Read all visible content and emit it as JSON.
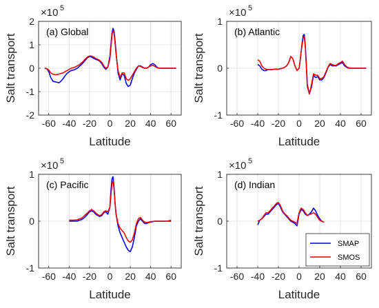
{
  "chart_data": [
    {
      "type": "line",
      "panel_label": "(a) Global",
      "xlabel": "Latitude",
      "ylabel": "Salt transport",
      "exponent": "×10",
      "exponent_power": "5",
      "xticks": [
        -60,
        -40,
        -20,
        0,
        20,
        40,
        60
      ],
      "yticks": [
        -2,
        -1,
        0,
        1,
        2
      ],
      "xlim": [
        -70,
        70
      ],
      "ylim": [
        -2,
        2
      ],
      "grid": true,
      "series": [
        {
          "name": "SMAP",
          "color": "#0000ee",
          "x": [
            -64,
            -62,
            -60,
            -58,
            -56,
            -54,
            -52,
            -50,
            -48,
            -46,
            -44,
            -42,
            -40,
            -38,
            -36,
            -34,
            -32,
            -30,
            -28,
            -26,
            -24,
            -22,
            -20,
            -18,
            -16,
            -14,
            -12,
            -10,
            -8,
            -6,
            -4,
            -2,
            0,
            1,
            2,
            3,
            4,
            5,
            6,
            8,
            10,
            12,
            14,
            16,
            18,
            20,
            22,
            24,
            26,
            28,
            30,
            32,
            34,
            36,
            38,
            40,
            42,
            44,
            46,
            48,
            50,
            55,
            60,
            65
          ],
          "y": [
            0,
            -0.02,
            -0.15,
            -0.4,
            -0.55,
            -0.58,
            -0.6,
            -0.62,
            -0.55,
            -0.45,
            -0.32,
            -0.22,
            -0.15,
            -0.1,
            -0.08,
            -0.05,
            0,
            0.08,
            0.15,
            0.25,
            0.35,
            0.45,
            0.5,
            0.48,
            0.42,
            0.38,
            0.35,
            0.3,
            0.2,
            0.05,
            -0.05,
            0.05,
            0.5,
            1.0,
            1.5,
            1.7,
            1.6,
            1.2,
            0.7,
            -0.2,
            -0.5,
            -0.25,
            -0.3,
            -0.65,
            -0.78,
            -0.72,
            -0.45,
            -0.2,
            -0.05,
            0.1,
            0.1,
            0.05,
            0,
            0,
            0.05,
            0.15,
            0.2,
            0.15,
            0.05,
            0,
            0,
            0,
            0,
            0
          ]
        },
        {
          "name": "SMOS",
          "color": "#ee0000",
          "x": [
            -64,
            -62,
            -60,
            -58,
            -56,
            -54,
            -52,
            -50,
            -48,
            -46,
            -44,
            -42,
            -40,
            -38,
            -36,
            -34,
            -32,
            -30,
            -28,
            -26,
            -24,
            -22,
            -20,
            -18,
            -16,
            -14,
            -12,
            -10,
            -8,
            -6,
            -4,
            -2,
            0,
            1,
            2,
            3,
            4,
            5,
            6,
            8,
            10,
            12,
            14,
            16,
            18,
            20,
            22,
            24,
            26,
            28,
            30,
            32,
            34,
            36,
            38,
            40,
            42,
            44,
            46,
            48,
            50,
            55,
            60,
            65
          ],
          "y": [
            0,
            -0.02,
            -0.08,
            -0.2,
            -0.25,
            -0.28,
            -0.27,
            -0.25,
            -0.22,
            -0.2,
            -0.15,
            -0.1,
            -0.05,
            0,
            0.02,
            0.05,
            0.1,
            0.15,
            0.22,
            0.3,
            0.4,
            0.48,
            0.52,
            0.52,
            0.48,
            0.42,
            0.38,
            0.33,
            0.25,
            0.1,
            0,
            0.05,
            0.4,
            0.9,
            1.4,
            1.6,
            1.5,
            1.1,
            0.6,
            -0.1,
            -0.4,
            -0.2,
            -0.2,
            -0.45,
            -0.52,
            -0.45,
            -0.3,
            -0.15,
            0,
            0.1,
            0.08,
            0.03,
            0,
            0,
            0.05,
            0.1,
            0.12,
            0.08,
            0.03,
            0,
            0,
            0,
            0,
            0
          ]
        }
      ]
    },
    {
      "type": "line",
      "panel_label": "(b) Atlantic",
      "xlabel": "Latitude",
      "ylabel": "Salt transport",
      "exponent": "×10",
      "exponent_power": "5",
      "xticks": [
        -60,
        -40,
        -20,
        0,
        20,
        40,
        60
      ],
      "yticks": [
        -1,
        0,
        1
      ],
      "xlim": [
        -70,
        70
      ],
      "ylim": [
        -1,
        1
      ],
      "grid": true,
      "series": [
        {
          "name": "SMAP",
          "color": "#0000ee",
          "x": [
            -40,
            -38,
            -36,
            -34,
            -32,
            -30,
            -28,
            -26,
            -24,
            -22,
            -20,
            -18,
            -16,
            -14,
            -12,
            -10,
            -8,
            -6,
            -4,
            -2,
            0,
            1,
            2,
            3,
            4,
            5,
            6,
            7,
            8,
            10,
            12,
            14,
            16,
            18,
            20,
            22,
            24,
            26,
            28,
            30,
            32,
            34,
            36,
            38,
            40,
            42,
            44,
            46,
            48,
            50,
            55,
            60,
            65
          ],
          "y": [
            0.08,
            0.05,
            -0.02,
            -0.05,
            -0.05,
            -0.03,
            -0.03,
            -0.03,
            -0.02,
            -0.02,
            -0.02,
            -0.01,
            0,
            0.02,
            0.05,
            0.12,
            0.25,
            0.2,
            0.05,
            -0.05,
            0,
            0.15,
            0.35,
            0.55,
            0.7,
            0.72,
            0.5,
            0.1,
            -0.35,
            -0.55,
            -0.4,
            -0.15,
            -0.2,
            -0.18,
            -0.25,
            -0.25,
            -0.2,
            -0.1,
            0.02,
            0.08,
            0.05,
            0.05,
            0.05,
            0.08,
            0.1,
            0.12,
            0.05,
            0.02,
            0,
            0,
            0,
            0,
            0
          ]
        },
        {
          "name": "SMOS",
          "color": "#ee0000",
          "x": [
            -40,
            -38,
            -36,
            -34,
            -32,
            -30,
            -28,
            -26,
            -24,
            -22,
            -20,
            -18,
            -16,
            -14,
            -12,
            -10,
            -8,
            -6,
            -4,
            -2,
            0,
            1,
            2,
            3,
            4,
            5,
            6,
            7,
            8,
            10,
            12,
            14,
            16,
            18,
            20,
            22,
            24,
            26,
            28,
            30,
            32,
            34,
            36,
            38,
            40,
            42,
            44,
            46,
            48,
            50,
            55,
            60,
            65
          ],
          "y": [
            0.18,
            0.15,
            0.05,
            0,
            -0.02,
            -0.03,
            -0.03,
            -0.03,
            -0.02,
            -0.02,
            -0.02,
            -0.01,
            0,
            0.02,
            0.05,
            0.12,
            0.25,
            0.2,
            0.05,
            -0.05,
            0,
            0.15,
            0.35,
            0.5,
            0.65,
            0.68,
            0.45,
            0.05,
            -0.4,
            -0.55,
            -0.35,
            -0.12,
            -0.15,
            -0.15,
            -0.22,
            -0.22,
            -0.18,
            -0.08,
            0.03,
            0.1,
            0.08,
            0.06,
            0.06,
            0.1,
            0.12,
            0.15,
            0.08,
            0.03,
            0.01,
            0,
            0,
            0,
            0
          ]
        }
      ]
    },
    {
      "type": "line",
      "panel_label": "(c) Pacific",
      "xlabel": "Latitude",
      "ylabel": "Salt transport",
      "exponent": "×10",
      "exponent_power": "5",
      "xticks": [
        -60,
        -40,
        -20,
        0,
        20,
        40,
        60
      ],
      "yticks": [
        -1,
        0,
        1
      ],
      "xlim": [
        -70,
        70
      ],
      "ylim": [
        -1,
        1
      ],
      "grid": true,
      "series": [
        {
          "name": "SMAP",
          "color": "#0000ee",
          "x": [
            -40,
            -36,
            -32,
            -30,
            -28,
            -26,
            -24,
            -22,
            -20,
            -18,
            -16,
            -14,
            -12,
            -10,
            -8,
            -6,
            -4,
            -2,
            0,
            1,
            2,
            3,
            4,
            5,
            6,
            8,
            10,
            12,
            14,
            16,
            18,
            20,
            22,
            24,
            26,
            28,
            30,
            32,
            34,
            36,
            38,
            40,
            44,
            48,
            52,
            56,
            60
          ],
          "y": [
            0,
            0,
            0,
            0.02,
            0.03,
            0.06,
            0.1,
            0.15,
            0.2,
            0.22,
            0.2,
            0.15,
            0.12,
            0.1,
            0.12,
            0.18,
            0.2,
            0.15,
            0.3,
            0.65,
            0.9,
            0.95,
            0.75,
            0.4,
            0.15,
            -0.1,
            -0.25,
            -0.35,
            -0.45,
            -0.55,
            -0.62,
            -0.65,
            -0.55,
            -0.35,
            -0.1,
            0,
            0.05,
            0,
            -0.05,
            -0.05,
            -0.03,
            -0.02,
            0,
            0,
            0,
            0,
            0
          ]
        },
        {
          "name": "SMOS",
          "color": "#ee0000",
          "x": [
            -40,
            -36,
            -32,
            -30,
            -28,
            -26,
            -24,
            -22,
            -20,
            -18,
            -16,
            -14,
            -12,
            -10,
            -8,
            -6,
            -4,
            -2,
            0,
            1,
            2,
            3,
            4,
            5,
            6,
            8,
            10,
            12,
            14,
            16,
            18,
            20,
            22,
            24,
            26,
            28,
            30,
            32,
            34,
            36,
            38,
            40,
            44,
            48,
            52,
            56,
            60
          ],
          "y": [
            0.02,
            0.02,
            0.03,
            0.05,
            0.06,
            0.1,
            0.14,
            0.18,
            0.22,
            0.25,
            0.22,
            0.18,
            0.14,
            0.12,
            0.14,
            0.2,
            0.22,
            0.2,
            0.3,
            0.55,
            0.8,
            0.85,
            0.7,
            0.4,
            0.15,
            -0.05,
            -0.15,
            -0.2,
            -0.25,
            -0.35,
            -0.42,
            -0.45,
            -0.4,
            -0.25,
            -0.05,
            0.05,
            0.08,
            0.02,
            -0.02,
            -0.03,
            -0.02,
            -0.01,
            0,
            0,
            0,
            0,
            0.02
          ]
        }
      ]
    },
    {
      "type": "line",
      "panel_label": "(d) Indian",
      "xlabel": "Latitude",
      "ylabel": "Salt transport",
      "exponent": "×10",
      "exponent_power": "5",
      "xticks": [
        -60,
        -40,
        -20,
        0,
        20,
        40,
        60
      ],
      "yticks": [
        -1,
        0,
        1
      ],
      "xlim": [
        -70,
        70
      ],
      "ylim": [
        -1,
        1
      ],
      "grid": true,
      "legend_position": "bottom-right",
      "series": [
        {
          "name": "SMAP",
          "color": "#0000ee",
          "x": [
            -40,
            -38,
            -36,
            -34,
            -32,
            -30,
            -28,
            -26,
            -24,
            -22,
            -20,
            -18,
            -16,
            -14,
            -12,
            -10,
            -8,
            -6,
            -4,
            -2,
            0,
            2,
            4,
            6,
            8,
            10,
            12,
            14,
            16,
            18,
            20,
            22,
            24
          ],
          "y": [
            -0.08,
            0.02,
            0.05,
            0.1,
            0.15,
            0.15,
            0.2,
            0.25,
            0.3,
            0.35,
            0.38,
            0.3,
            0.2,
            0.15,
            0.1,
            0.05,
            0,
            -0.02,
            -0.05,
            -0.1,
            0.15,
            0.25,
            0.22,
            0.15,
            0.12,
            0.15,
            0.2,
            0.28,
            0.22,
            0.12,
            0.05,
            0,
            -0.02
          ]
        },
        {
          "name": "SMOS",
          "color": "#ee0000",
          "x": [
            -40,
            -38,
            -36,
            -34,
            -32,
            -30,
            -28,
            -26,
            -24,
            -22,
            -20,
            -18,
            -16,
            -14,
            -12,
            -10,
            -8,
            -6,
            -4,
            -2,
            0,
            2,
            4,
            6,
            8,
            10,
            12,
            14,
            16,
            18,
            20,
            22,
            24
          ],
          "y": [
            0,
            0.02,
            0.05,
            0.12,
            0.18,
            0.18,
            0.22,
            0.28,
            0.32,
            0.38,
            0.4,
            0.33,
            0.22,
            0.16,
            0.12,
            0.07,
            0.02,
            0,
            -0.02,
            -0.05,
            0.18,
            0.28,
            0.25,
            0.18,
            0.12,
            0.14,
            0.16,
            0.18,
            0.15,
            0.08,
            0.02,
            0,
            -0.02
          ]
        }
      ]
    }
  ]
}
